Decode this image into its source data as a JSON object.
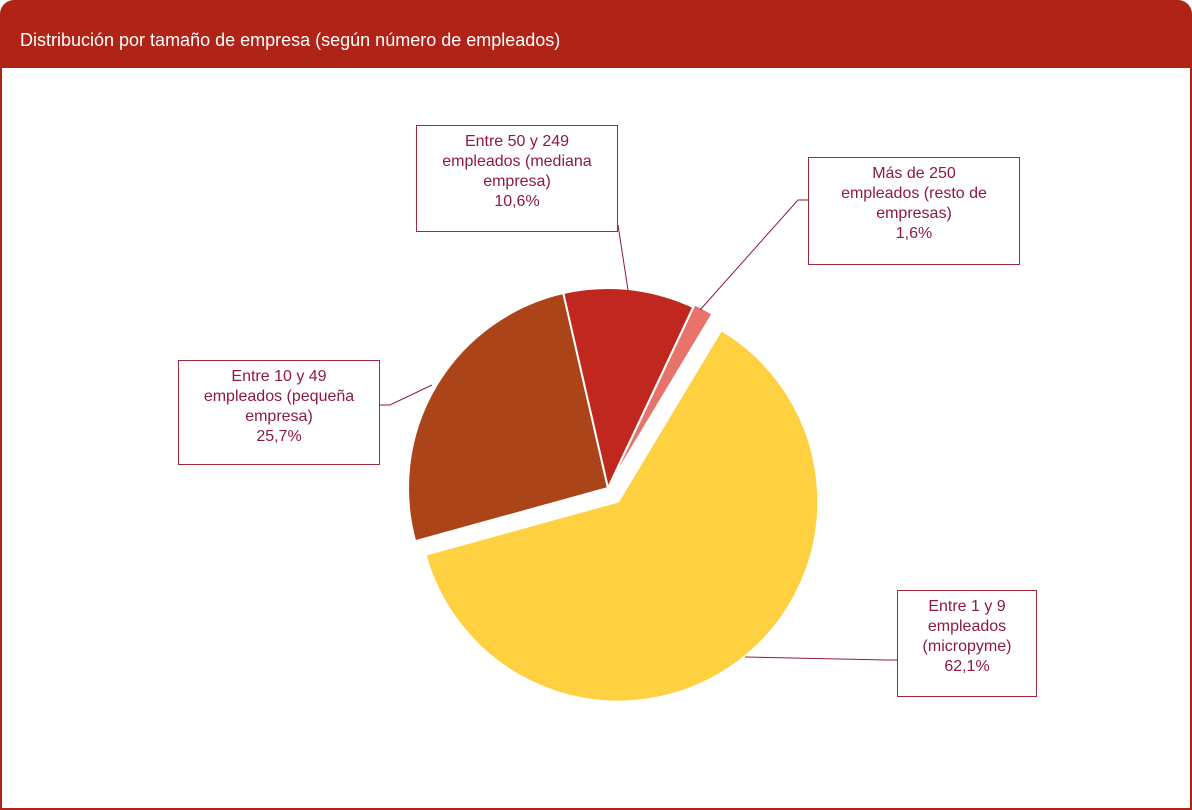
{
  "chart_data": {
    "type": "pie",
    "title": "Distribución por tamaño de empresa (según número de empleados)",
    "categories": [
      "Entre 1 y 9 empleados (micropyme)",
      "Entre 10 y 49 empleados (pequeña empresa)",
      "Entre 50 y 249 empleados (mediana empresa)",
      "Más de 250 empleados (resto de empresas)"
    ],
    "values": [
      62.1,
      25.7,
      10.6,
      1.6
    ],
    "value_labels": [
      "62,1%",
      "25,7%",
      "10,6%",
      "1,6%"
    ],
    "colors": [
      "#ffd040",
      "#ab4519",
      "#c0281f",
      "#e8736a"
    ]
  }
}
